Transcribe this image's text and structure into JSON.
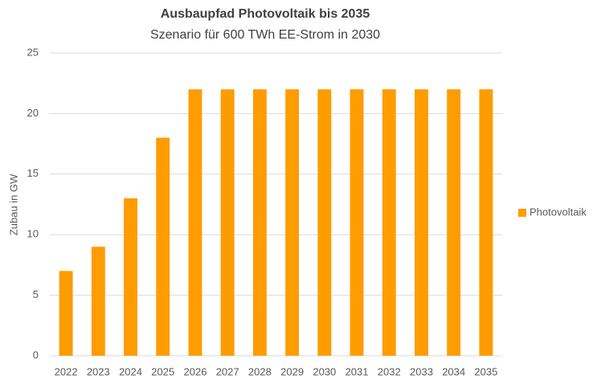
{
  "chart_data": {
    "type": "bar",
    "title": "Ausbaupfad Photovoltaik bis 2035",
    "subtitle": "Szenario für 600 TWh EE-Strom in 2030",
    "y_label": "Zubau in GW",
    "categories": [
      "2022",
      "2023",
      "2024",
      "2025",
      "2026",
      "2027",
      "2028",
      "2029",
      "2030",
      "2031",
      "2032",
      "2033",
      "2034",
      "2035"
    ],
    "series": [
      {
        "name": "Photovoltaik",
        "color": "#ff9c00",
        "values": [
          7,
          9,
          13,
          18,
          22,
          22,
          22,
          22,
          22,
          22,
          22,
          22,
          22,
          22
        ]
      }
    ],
    "ylim": [
      0,
      25
    ],
    "yticks": [
      0,
      5,
      10,
      15,
      20,
      25
    ],
    "grid": true,
    "legend": "right"
  }
}
